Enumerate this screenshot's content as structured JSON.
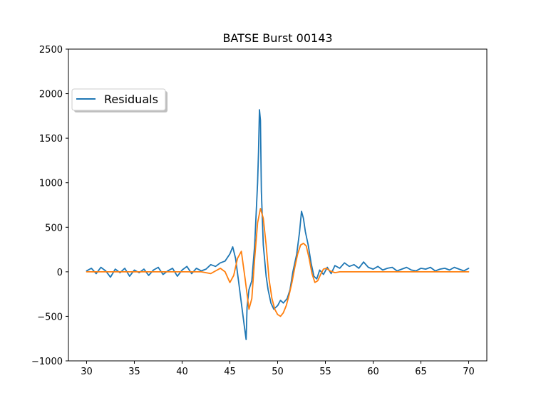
{
  "chart_data": {
    "type": "line",
    "title": "BATSE Burst 00143",
    "xlabel": "",
    "ylabel": "",
    "xlim": [
      28.1,
      71.9
    ],
    "ylim": [
      -1000,
      2500
    ],
    "xticks": [
      30,
      35,
      40,
      45,
      50,
      55,
      60,
      65,
      70
    ],
    "yticks": [
      -1000,
      -500,
      0,
      500,
      1000,
      1500,
      2000,
      2500
    ],
    "xtick_labels": [
      "30",
      "35",
      "40",
      "45",
      "50",
      "55",
      "60",
      "65",
      "70"
    ],
    "ytick_labels": [
      "−1000",
      "−500",
      "0",
      "500",
      "1000",
      "1500",
      "2000",
      "2500"
    ],
    "legend": {
      "position": "upper-left",
      "entries": [
        "Residuals"
      ]
    },
    "series": [
      {
        "name": "Residuals",
        "color": "#1f77b4",
        "x": [
          30.0,
          30.5,
          31.0,
          31.5,
          32.0,
          32.5,
          33.0,
          33.5,
          34.0,
          34.5,
          35.0,
          35.5,
          36.0,
          36.5,
          37.0,
          37.5,
          38.0,
          38.5,
          39.0,
          39.5,
          40.0,
          40.5,
          41.0,
          41.5,
          42.0,
          42.5,
          43.0,
          43.5,
          44.0,
          44.5,
          45.0,
          45.3,
          45.6,
          45.9,
          46.2,
          46.5,
          46.7,
          46.8,
          47.0,
          47.3,
          47.6,
          47.9,
          48.0,
          48.1,
          48.2,
          48.3,
          48.5,
          48.8,
          49.0,
          49.3,
          49.6,
          50.0,
          50.3,
          50.6,
          51.0,
          51.3,
          51.6,
          52.0,
          52.3,
          52.5,
          52.7,
          52.9,
          53.2,
          53.5,
          53.8,
          54.1,
          54.4,
          54.8,
          55.2,
          55.6,
          56.0,
          56.5,
          57.0,
          57.5,
          58.0,
          58.5,
          59.0,
          59.5,
          60.0,
          60.5,
          61.0,
          61.5,
          62.0,
          62.5,
          63.0,
          63.5,
          64.0,
          64.5,
          65.0,
          65.5,
          66.0,
          66.5,
          67.0,
          67.5,
          68.0,
          68.5,
          69.0,
          69.5,
          70.0
        ],
        "y": [
          10,
          40,
          -20,
          50,
          10,
          -60,
          30,
          -10,
          40,
          -50,
          20,
          -10,
          30,
          -40,
          20,
          50,
          -30,
          10,
          40,
          -50,
          20,
          60,
          -20,
          40,
          10,
          30,
          80,
          60,
          100,
          120,
          200,
          280,
          150,
          -100,
          -350,
          -600,
          -760,
          -400,
          -200,
          -100,
          300,
          1000,
          1350,
          1820,
          1700,
          900,
          300,
          -50,
          -200,
          -350,
          -420,
          -380,
          -320,
          -350,
          -300,
          -200,
          0,
          200,
          450,
          680,
          600,
          450,
          300,
          100,
          -50,
          -80,
          20,
          -30,
          50,
          -20,
          70,
          40,
          100,
          60,
          80,
          40,
          110,
          50,
          30,
          60,
          20,
          40,
          50,
          10,
          30,
          50,
          20,
          10,
          40,
          30,
          50,
          10,
          30,
          40,
          20,
          50,
          30,
          10,
          40
        ]
      },
      {
        "name": "",
        "color": "#ff7f0e",
        "x": [
          30.0,
          31.0,
          32.0,
          33.0,
          34.0,
          35.0,
          36.0,
          37.0,
          38.0,
          39.0,
          40.0,
          41.0,
          42.0,
          42.5,
          43.0,
          43.5,
          44.0,
          44.5,
          45.0,
          45.4,
          45.8,
          46.2,
          46.6,
          47.0,
          47.3,
          47.6,
          47.9,
          48.2,
          48.5,
          48.8,
          49.1,
          49.4,
          49.7,
          50.0,
          50.3,
          50.6,
          50.9,
          51.2,
          51.5,
          51.8,
          52.1,
          52.4,
          52.7,
          53.0,
          53.3,
          53.6,
          53.9,
          54.2,
          54.5,
          54.8,
          55.1,
          55.5,
          56.0,
          56.5,
          57.0,
          58.0,
          59.0,
          60.0,
          61.0,
          62.0,
          63.0,
          64.0,
          65.0,
          66.0,
          67.0,
          68.0,
          69.0,
          70.0
        ],
        "y": [
          0,
          0,
          0,
          0,
          0,
          0,
          0,
          0,
          0,
          0,
          0,
          0,
          0,
          -10,
          -20,
          10,
          40,
          0,
          -120,
          -40,
          150,
          230,
          -80,
          -420,
          -300,
          150,
          550,
          710,
          600,
          300,
          -80,
          -300,
          -420,
          -480,
          -500,
          -460,
          -380,
          -260,
          -120,
          50,
          200,
          300,
          320,
          290,
          150,
          -20,
          -120,
          -100,
          -30,
          30,
          40,
          10,
          -10,
          0,
          0,
          0,
          0,
          0,
          0,
          0,
          0,
          0,
          0,
          0,
          0,
          0,
          0,
          0
        ]
      }
    ]
  }
}
